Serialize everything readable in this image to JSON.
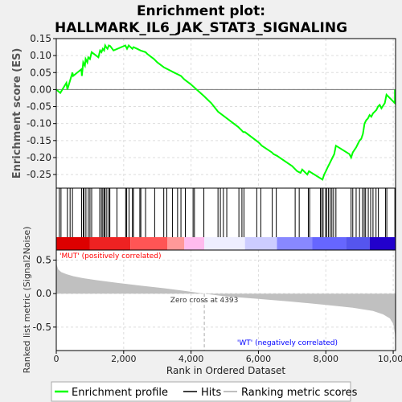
{
  "chart_data": {
    "type": "line",
    "title_line1": "Enrichment plot:",
    "title_line2": "HALLMARK_IL6_JAK_STAT3_SIGNALING",
    "es_panel": {
      "ylabel": "Enrichment score (ES)",
      "ylim": [
        -0.29,
        0.15
      ],
      "yticks": [
        "0.15",
        "0.10",
        "0.05",
        "0.00",
        "-0.05",
        "-0.10",
        "-0.15",
        "-0.20",
        "-0.25"
      ],
      "ytick_values": [
        0.15,
        0.1,
        0.05,
        0.0,
        -0.05,
        -0.1,
        -0.15,
        -0.2,
        -0.25
      ],
      "series": [
        {
          "name": "Enrichment profile",
          "color": "#00ff00",
          "x": [
            0,
            120,
            300,
            330,
            480,
            500,
            750,
            760,
            780,
            800,
            850,
            870,
            920,
            950,
            1000,
            1050,
            1250,
            1300,
            1340,
            1380,
            1420,
            1450,
            1480,
            1520,
            1560,
            1600,
            1700,
            2050,
            2100,
            2150,
            2260,
            2290,
            2400,
            2500,
            2650,
            2700,
            2900,
            3000,
            3200,
            3300,
            3500,
            3600,
            3700,
            3800,
            4000,
            4393,
            4600,
            4800,
            5000,
            5200,
            5400,
            5500,
            5550,
            5600,
            6000,
            6050,
            6100,
            6400,
            6450,
            6550,
            7000,
            7100,
            7150,
            7250,
            7300,
            7450,
            7500,
            7900,
            7950,
            8000,
            8050,
            8100,
            8150,
            8200,
            8250,
            8300,
            8700,
            8750,
            8800,
            8900,
            8950,
            9000,
            9050,
            9100,
            9150,
            9200,
            9250,
            9300,
            9350,
            9400,
            9450,
            9500,
            9550,
            9600,
            9650,
            9750,
            9800,
            10050,
            10050
          ],
          "y": [
            0.0,
            -0.01,
            0.02,
            0.0,
            0.05,
            0.04,
            0.06,
            0.04,
            0.06,
            0.08,
            0.07,
            0.09,
            0.08,
            0.095,
            0.09,
            0.11,
            0.095,
            0.115,
            0.11,
            0.12,
            0.115,
            0.13,
            0.125,
            0.12,
            0.13,
            0.128,
            0.115,
            0.13,
            0.12,
            0.13,
            0.12,
            0.125,
            0.12,
            0.115,
            0.11,
            0.105,
            0.09,
            0.08,
            0.065,
            0.06,
            0.05,
            0.045,
            0.04,
            0.03,
            0.015,
            -0.02,
            -0.04,
            -0.065,
            -0.08,
            -0.095,
            -0.11,
            -0.12,
            -0.125,
            -0.125,
            -0.155,
            -0.16,
            -0.165,
            -0.185,
            -0.19,
            -0.195,
            -0.225,
            -0.235,
            -0.24,
            -0.245,
            -0.235,
            -0.25,
            -0.24,
            -0.265,
            -0.25,
            -0.24,
            -0.23,
            -0.22,
            -0.21,
            -0.2,
            -0.19,
            -0.165,
            -0.19,
            -0.2,
            -0.185,
            -0.17,
            -0.16,
            -0.15,
            -0.145,
            -0.13,
            -0.1,
            -0.09,
            -0.085,
            -0.075,
            -0.08,
            -0.07,
            -0.065,
            -0.06,
            -0.05,
            -0.045,
            -0.055,
            -0.04,
            -0.015,
            -0.04,
            0.0
          ]
        }
      ]
    },
    "hits": {
      "legend_name": "Hits",
      "x": [
        90,
        140,
        330,
        410,
        480,
        750,
        800,
        820,
        880,
        950,
        1000,
        1050,
        1290,
        1340,
        1380,
        1420,
        1450,
        1500,
        1560,
        1590,
        1800,
        2060,
        2090,
        2160,
        2260,
        2290,
        2480,
        2510,
        2650,
        2920,
        3190,
        3280,
        3450,
        3600,
        3700,
        3830,
        4060,
        4100,
        4380,
        4800,
        4870,
        4960,
        5060,
        5420,
        5510,
        5570,
        5950,
        6070,
        6410,
        6530,
        7090,
        7210,
        7480,
        7520,
        7840,
        7880,
        7920,
        7990,
        8030,
        8080,
        8130,
        8180,
        8230,
        8300,
        8750,
        8800,
        8900,
        9000,
        9090,
        9140,
        9180,
        9260,
        9330,
        9400,
        9490,
        9560,
        9770,
        9810,
        10050
      ]
    },
    "ranked_metric": {
      "legend_name": "Ranking metric scores",
      "ylabel": "Ranked list metric (Signal2Noise)",
      "ylim": [
        -0.85,
        0.65
      ],
      "yticks": [
        "0.5",
        "0.0",
        "-0.5"
      ],
      "ytick_values": [
        0.5,
        0.0,
        -0.5
      ],
      "x": [
        0,
        20,
        60,
        150,
        300,
        500,
        800,
        1200,
        1800,
        2500,
        3200,
        3800,
        4393,
        5000,
        6000,
        7000,
        8000,
        8800,
        9400,
        9700,
        9900,
        10000,
        10050,
        10070
      ],
      "y": [
        0.5,
        0.42,
        0.36,
        0.32,
        0.29,
        0.26,
        0.23,
        0.2,
        0.16,
        0.12,
        0.08,
        0.04,
        0.0,
        -0.04,
        -0.08,
        -0.12,
        -0.17,
        -0.21,
        -0.26,
        -0.31,
        -0.37,
        -0.45,
        -0.6,
        -0.8
      ],
      "zero_cross_label": "Zero cross at 4393",
      "zero_cross_x": 4393,
      "pos_label": "'MUT' (positively correlated)",
      "neg_label": "'WT' (negatively correlated)",
      "fill_color": "#c0c0c0",
      "pos_label_color": "#ff0000",
      "neg_label_color": "#0000ff"
    },
    "heatbar": {
      "stops": [
        {
          "x": 0,
          "color": "#dd0000"
        },
        {
          "x": 1000,
          "color": "#ee2222"
        },
        {
          "x": 2200,
          "color": "#ff5555"
        },
        {
          "x": 3300,
          "color": "#ff9999"
        },
        {
          "x": 3800,
          "color": "#ffbbee"
        },
        {
          "x": 4393,
          "color": "#eeeeff"
        },
        {
          "x": 5600,
          "color": "#ccccff"
        },
        {
          "x": 6550,
          "color": "#8888ff"
        },
        {
          "x": 7600,
          "color": "#6666ff"
        },
        {
          "x": 8600,
          "color": "#5555ee"
        },
        {
          "x": 9300,
          "color": "#2200cc"
        },
        {
          "x": 10070,
          "color": "#1100bb"
        }
      ]
    },
    "xaxis": {
      "label": "Rank in Ordered Dataset",
      "xlim": [
        0,
        10070
      ],
      "ticks": [
        "0",
        "2,000",
        "4,000",
        "6,000",
        "8,000",
        "10,000"
      ],
      "tick_values": [
        0,
        2000,
        4000,
        6000,
        8000,
        10000
      ]
    },
    "legend_position": "bottom",
    "grid": true
  }
}
